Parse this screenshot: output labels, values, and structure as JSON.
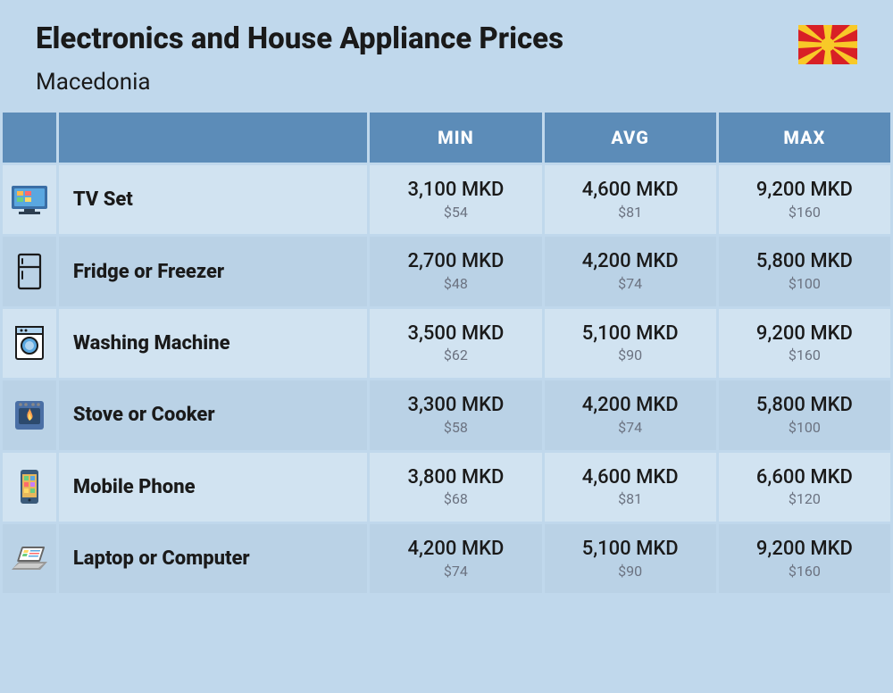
{
  "header": {
    "title": "Electronics and House Appliance Prices",
    "subtitle": "Macedonia"
  },
  "flag": {
    "bg": "#d82026",
    "sun": "#f8c928"
  },
  "columns": {
    "min": "MIN",
    "avg": "AVG",
    "max": "MAX"
  },
  "styling": {
    "page_bg": "#c0d8ec",
    "header_bg": "#5c8cb8",
    "header_text": "#ffffff",
    "row_alt_a": "#d1e3f1",
    "row_alt_b": "#bad2e6",
    "main_text": "#1a1a1a",
    "sub_text": "#6b7280",
    "title_fontsize": 33,
    "subtitle_fontsize": 26,
    "cell_main_fontsize": 22,
    "cell_sub_fontsize": 16,
    "header_fontsize": 20
  },
  "rows": [
    {
      "icon": "tv",
      "name": "TV Set",
      "min_mkd": "3,100 MKD",
      "min_usd": "$54",
      "avg_mkd": "4,600 MKD",
      "avg_usd": "$81",
      "max_mkd": "9,200 MKD",
      "max_usd": "$160"
    },
    {
      "icon": "fridge",
      "name": "Fridge or Freezer",
      "min_mkd": "2,700 MKD",
      "min_usd": "$48",
      "avg_mkd": "4,200 MKD",
      "avg_usd": "$74",
      "max_mkd": "5,800 MKD",
      "max_usd": "$100"
    },
    {
      "icon": "washer",
      "name": "Washing Machine",
      "min_mkd": "3,500 MKD",
      "min_usd": "$62",
      "avg_mkd": "5,100 MKD",
      "avg_usd": "$90",
      "max_mkd": "9,200 MKD",
      "max_usd": "$160"
    },
    {
      "icon": "stove",
      "name": "Stove or Cooker",
      "min_mkd": "3,300 MKD",
      "min_usd": "$58",
      "avg_mkd": "4,200 MKD",
      "avg_usd": "$74",
      "max_mkd": "5,800 MKD",
      "max_usd": "$100"
    },
    {
      "icon": "phone",
      "name": "Mobile Phone",
      "min_mkd": "3,800 MKD",
      "min_usd": "$68",
      "avg_mkd": "4,600 MKD",
      "avg_usd": "$81",
      "max_mkd": "6,600 MKD",
      "max_usd": "$120"
    },
    {
      "icon": "laptop",
      "name": "Laptop or Computer",
      "min_mkd": "4,200 MKD",
      "min_usd": "$74",
      "avg_mkd": "5,100 MKD",
      "avg_usd": "$90",
      "max_mkd": "9,200 MKD",
      "max_usd": "$160"
    }
  ],
  "icons": {
    "tv": {
      "colors": [
        "#3a6ea5",
        "#5aa7e0",
        "#ffb84d",
        "#ff6b6b",
        "#6bcf7f",
        "#2c3e50"
      ]
    },
    "fridge": {
      "colors": [
        "#1a1a1a",
        "#ffffff"
      ]
    },
    "washer": {
      "colors": [
        "#1a1a1a",
        "#ffffff",
        "#5aa7e0",
        "#b0d4f0"
      ]
    },
    "stove": {
      "colors": [
        "#4a6fa5",
        "#ff9f4d",
        "#ffd966",
        "#ff6b35",
        "#666"
      ]
    },
    "phone": {
      "colors": [
        "#3a5a7a",
        "#e8b85c",
        "#6bcf7f",
        "#5aa7e0",
        "#ff6b6b",
        "#c77dff",
        "#ffd966"
      ]
    },
    "laptop": {
      "colors": [
        "#666",
        "#fff",
        "#ffd966",
        "#6bcf7f",
        "#5aa7e0",
        "#ff6b6b"
      ]
    }
  }
}
